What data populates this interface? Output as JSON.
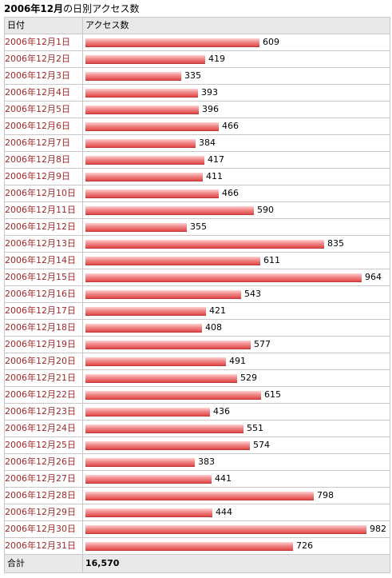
{
  "title": {
    "bold": "2006年12月",
    "rest": "の日別アクセス数"
  },
  "table": {
    "headers": {
      "date": "日付",
      "count": "アクセス数"
    },
    "max_value": 982,
    "rows": [
      {
        "date": "2006年12月1日",
        "value": 609,
        "label": "609"
      },
      {
        "date": "2006年12月2日",
        "value": 419,
        "label": "419"
      },
      {
        "date": "2006年12月3日",
        "value": 335,
        "label": "335"
      },
      {
        "date": "2006年12月4日",
        "value": 393,
        "label": "393"
      },
      {
        "date": "2006年12月5日",
        "value": 396,
        "label": "396"
      },
      {
        "date": "2006年12月6日",
        "value": 466,
        "label": "466"
      },
      {
        "date": "2006年12月7日",
        "value": 384,
        "label": "384"
      },
      {
        "date": "2006年12月8日",
        "value": 417,
        "label": "417"
      },
      {
        "date": "2006年12月9日",
        "value": 411,
        "label": "411"
      },
      {
        "date": "2006年12月10日",
        "value": 466,
        "label": "466"
      },
      {
        "date": "2006年12月11日",
        "value": 590,
        "label": "590"
      },
      {
        "date": "2006年12月12日",
        "value": 355,
        "label": "355"
      },
      {
        "date": "2006年12月13日",
        "value": 835,
        "label": "835"
      },
      {
        "date": "2006年12月14日",
        "value": 611,
        "label": "611"
      },
      {
        "date": "2006年12月15日",
        "value": 964,
        "label": "964"
      },
      {
        "date": "2006年12月16日",
        "value": 543,
        "label": "543"
      },
      {
        "date": "2006年12月17日",
        "value": 421,
        "label": "421"
      },
      {
        "date": "2006年12月18日",
        "value": 408,
        "label": "408"
      },
      {
        "date": "2006年12月19日",
        "value": 577,
        "label": "577"
      },
      {
        "date": "2006年12月20日",
        "value": 491,
        "label": "491"
      },
      {
        "date": "2006年12月21日",
        "value": 529,
        "label": "529"
      },
      {
        "date": "2006年12月22日",
        "value": 615,
        "label": "615"
      },
      {
        "date": "2006年12月23日",
        "value": 436,
        "label": "436"
      },
      {
        "date": "2006年12月24日",
        "value": 551,
        "label": "551"
      },
      {
        "date": "2006年12月25日",
        "value": 574,
        "label": "574"
      },
      {
        "date": "2006年12月26日",
        "value": 383,
        "label": "383"
      },
      {
        "date": "2006年12月27日",
        "value": 441,
        "label": "441"
      },
      {
        "date": "2006年12月28日",
        "value": 798,
        "label": "798"
      },
      {
        "date": "2006年12月29日",
        "value": 444,
        "label": "444"
      },
      {
        "date": "2006年12月30日",
        "value": 982,
        "label": "982"
      },
      {
        "date": "2006年12月31日",
        "value": 726,
        "label": "726"
      }
    ],
    "total": {
      "label": "合計",
      "value": "16,570"
    }
  },
  "colors": {
    "date_text": "#a32828",
    "bar_top": "#ffd0d0",
    "bar_bottom": "#e04848",
    "header_bg": "#e9e9e9",
    "border": "#c8c8c8"
  }
}
